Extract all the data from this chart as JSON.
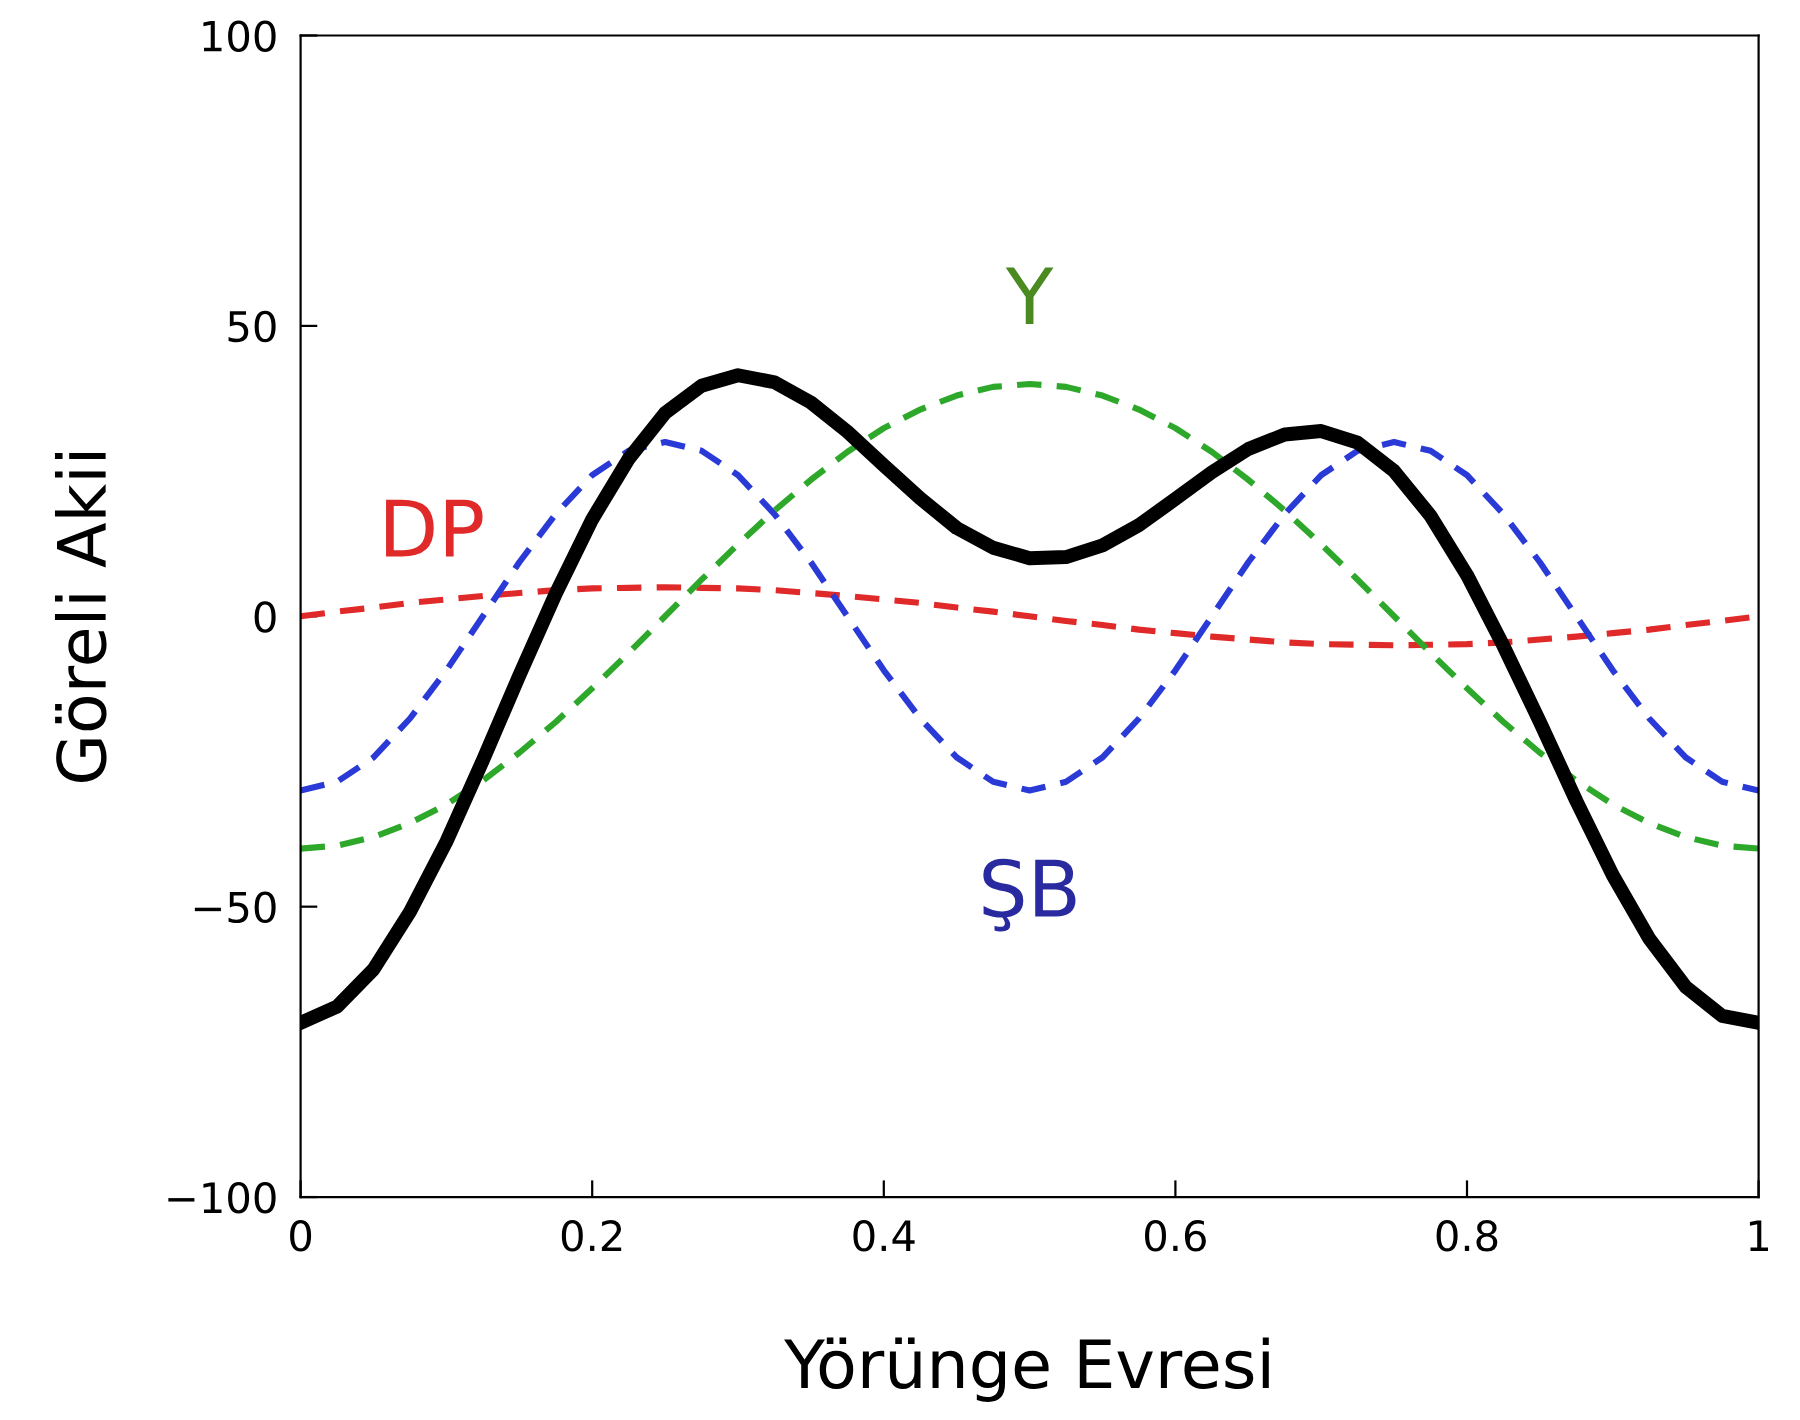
{
  "chart_data": {
    "type": "line",
    "xlabel": "Yörünge Evresi",
    "ylabel": "Göreli Akii",
    "x": [
      0,
      0.025,
      0.05,
      0.075,
      0.1,
      0.125,
      0.15,
      0.175,
      0.2,
      0.225,
      0.25,
      0.275,
      0.3,
      0.325,
      0.35,
      0.375,
      0.4,
      0.425,
      0.45,
      0.475,
      0.5,
      0.525,
      0.55,
      0.575,
      0.6,
      0.625,
      0.65,
      0.675,
      0.7,
      0.725,
      0.75,
      0.775,
      0.8,
      0.825,
      0.85,
      0.875,
      0.9,
      0.925,
      0.95,
      0.975,
      1
    ],
    "series": [
      {
        "name": "DP",
        "color": "#e02a2a",
        "line_style": "dashed",
        "values": [
          0,
          0.8,
          1.5,
          2.3,
          2.9,
          3.5,
          4.0,
          4.5,
          4.8,
          4.9,
          5,
          4.9,
          4.8,
          4.5,
          4.0,
          3.5,
          2.9,
          2.3,
          1.5,
          0.8,
          0,
          -0.8,
          -1.5,
          -2.3,
          -2.9,
          -3.5,
          -4.0,
          -4.5,
          -4.8,
          -4.9,
          -5,
          -4.9,
          -4.8,
          -4.5,
          -4.0,
          -3.5,
          -2.9,
          -2.3,
          -1.5,
          -0.8,
          0
        ]
      },
      {
        "name": "ŞB",
        "color": "#2a3ad6",
        "line_style": "dashed",
        "values": [
          -30,
          -28.5,
          -24.3,
          -17.6,
          -9.3,
          0,
          9.3,
          17.6,
          24.3,
          28.5,
          30,
          28.5,
          24.3,
          17.6,
          9.3,
          0,
          -9.3,
          -17.6,
          -24.3,
          -28.5,
          -30,
          -28.5,
          -24.3,
          -17.6,
          -9.3,
          0,
          9.3,
          17.6,
          24.3,
          28.5,
          30,
          28.5,
          24.3,
          17.6,
          9.3,
          0,
          -9.3,
          -17.6,
          -24.3,
          -28.5,
          -30
        ]
      },
      {
        "name": "Y",
        "color": "#2ea82a",
        "line_style": "dashed",
        "values": [
          -40,
          -39.5,
          -38,
          -35.6,
          -32.4,
          -28.3,
          -23.5,
          -18.2,
          -12.4,
          -6.3,
          0,
          6.3,
          12.4,
          18.2,
          23.5,
          28.3,
          32.4,
          35.6,
          38,
          39.5,
          40,
          39.5,
          38,
          35.6,
          32.4,
          28.3,
          23.5,
          18.2,
          12.4,
          6.3,
          0,
          -6.3,
          -12.4,
          -18.2,
          -23.5,
          -28.3,
          -32.4,
          -35.6,
          -38,
          -39.5,
          -40
        ]
      },
      {
        "color": "#000000",
        "line_style": "solid",
        "values": [
          -70,
          -67.2,
          -60.8,
          -50.9,
          -38.8,
          -24.8,
          -10.2,
          3.9,
          16.7,
          27.1,
          35,
          39.7,
          41.5,
          40.3,
          36.8,
          31.8,
          26.0,
          20.3,
          15.2,
          11.8,
          10,
          10.2,
          12.2,
          15.7,
          20.2,
          24.8,
          28.8,
          31.3,
          31.9,
          29.9,
          25,
          17.3,
          7.1,
          -5.1,
          -18.2,
          -31.8,
          -44.6,
          -55.5,
          -63.8,
          -68.8,
          -70
        ]
      }
    ],
    "xlim": [
      0,
      1
    ],
    "ylim": [
      -100,
      100
    ],
    "xticks": [
      0,
      {
        "value": 0.2,
        "label": "0.2"
      },
      {
        "value": 0.4,
        "label": "0.4"
      },
      {
        "value": 0.6,
        "label": "0.6"
      },
      {
        "value": 0.8,
        "label": "0.8"
      },
      1
    ],
    "yticks": [
      {
        "value": -100,
        "label": "−100"
      },
      {
        "value": -50,
        "label": "−50"
      },
      0,
      50,
      100
    ],
    "grid": false,
    "legend": false
  }
}
